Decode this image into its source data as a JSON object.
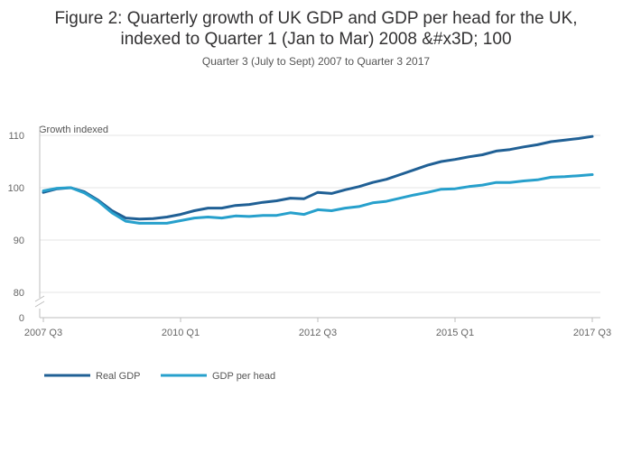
{
  "chart_data": {
    "type": "line",
    "title_line1": "Figure 2: Quarterly growth of UK GDP and GDP per head for the UK,",
    "title_line2": "indexed to Quarter 1 (Jan to Mar) 2008 &#x3D; 100",
    "subtitle": "Quarter 3 (July to Sept) 2007 to Quarter 3 2017",
    "ylabel": "Growth indexed",
    "xlabel": "",
    "y_ticks": [
      0,
      80,
      90,
      100,
      110
    ],
    "y_axis_break": [
      0,
      80
    ],
    "ylim": [
      78,
      111
    ],
    "x_tick_labels": [
      {
        "index": 0,
        "label": "2007 Q3"
      },
      {
        "index": 10,
        "label": "2010 Q1"
      },
      {
        "index": 20,
        "label": "2012 Q3"
      },
      {
        "index": 30,
        "label": "2015 Q1"
      },
      {
        "index": 40,
        "label": "2017 Q3"
      }
    ],
    "legend_position": "bottom-left",
    "grid": true,
    "series": [
      {
        "name": "Real GDP",
        "color": "#206095",
        "values": [
          99.1,
          99.8,
          100.0,
          99.2,
          97.6,
          95.6,
          94.2,
          94.0,
          94.1,
          94.4,
          94.9,
          95.6,
          96.1,
          96.1,
          96.6,
          96.8,
          97.2,
          97.5,
          98.0,
          97.9,
          99.1,
          98.9,
          99.6,
          100.2,
          101.0,
          101.6,
          102.5,
          103.4,
          104.3,
          105.0,
          105.4,
          105.9,
          106.3,
          107.0,
          107.3,
          107.8,
          108.2,
          108.8,
          109.1,
          109.4,
          109.8
        ]
      },
      {
        "name": "GDP per head",
        "color": "#27a0cc",
        "values": [
          99.4,
          99.9,
          100.0,
          99.0,
          97.4,
          95.2,
          93.6,
          93.2,
          93.2,
          93.2,
          93.7,
          94.2,
          94.4,
          94.2,
          94.6,
          94.5,
          94.7,
          94.7,
          95.2,
          94.9,
          95.8,
          95.6,
          96.1,
          96.4,
          97.1,
          97.4,
          98.0,
          98.6,
          99.1,
          99.7,
          99.8,
          100.2,
          100.5,
          101.0,
          101.0,
          101.3,
          101.5,
          102.0,
          102.1,
          102.3,
          102.5
        ]
      }
    ]
  }
}
